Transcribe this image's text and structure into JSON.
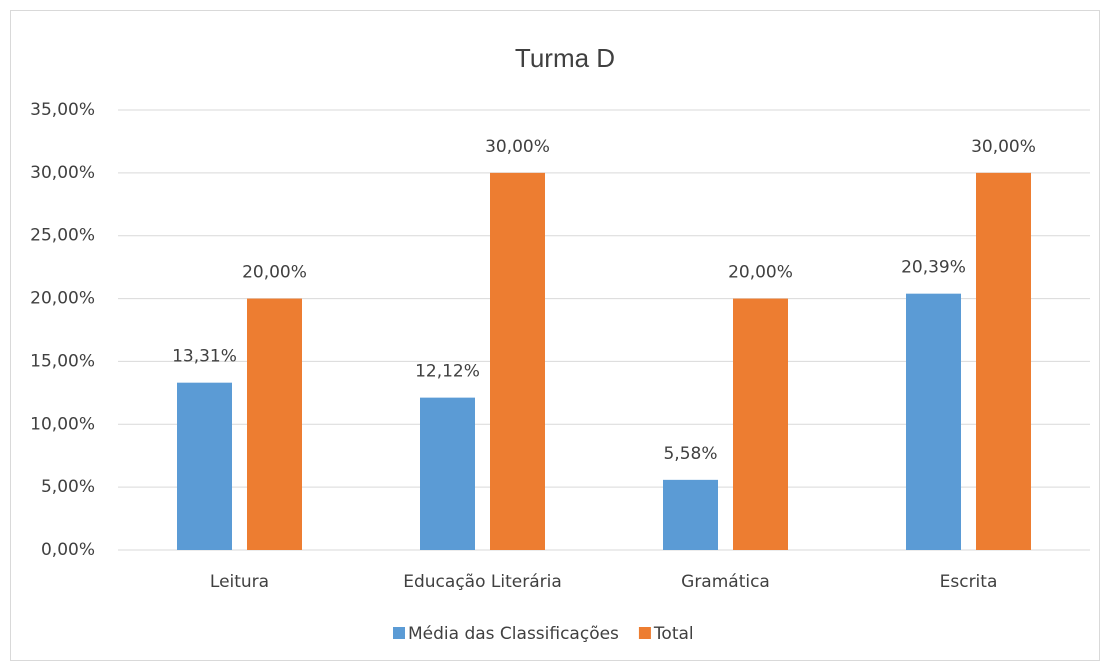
{
  "chart_data": {
    "type": "bar",
    "title": "Turma D",
    "categories": [
      "Leitura",
      "Educação Literária",
      "Gramática",
      "Escrita"
    ],
    "series": [
      {
        "name": "Média das Classificações",
        "color": "#5b9bd5",
        "values": [
          13.31,
          12.12,
          5.58,
          20.39
        ],
        "value_labels": [
          "13,31%",
          "12,12%",
          "5,58%",
          "20,39%"
        ]
      },
      {
        "name": "Total",
        "color": "#ed7d31",
        "values": [
          20,
          30,
          20,
          30
        ],
        "value_labels": [
          "20,00%",
          "30,00%",
          "20,00%",
          "30,00%"
        ]
      }
    ],
    "ylim": [
      0,
      35
    ],
    "yticks": [
      {
        "value": 0,
        "label": "0,00%"
      },
      {
        "value": 5,
        "label": "5,00%"
      },
      {
        "value": 10,
        "label": "10,00%"
      },
      {
        "value": 15,
        "label": "15,00%"
      },
      {
        "value": 20,
        "label": "20,00%"
      },
      {
        "value": 25,
        "label": "25,00%"
      },
      {
        "value": 30,
        "label": "30,00%"
      },
      {
        "value": 35,
        "label": "35,00%"
      }
    ],
    "grid": true,
    "legend": "bottom"
  }
}
